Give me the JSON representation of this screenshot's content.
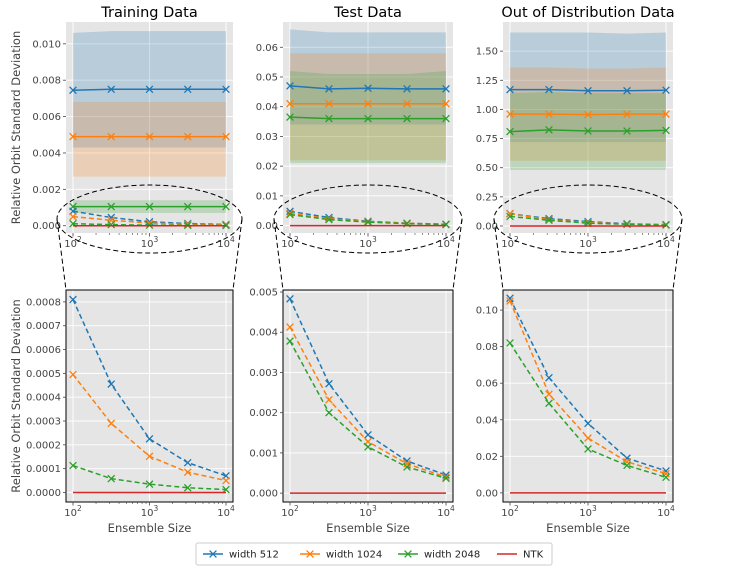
{
  "legend": [
    {
      "name": "width 512",
      "color": "#1f77b4"
    },
    {
      "name": "width 1024",
      "color": "#ff7f0e"
    },
    {
      "name": "width 2048",
      "color": "#2ca02c"
    },
    {
      "name": "NTK",
      "color": "#d62728"
    }
  ],
  "chart_data": [
    {
      "type": "line",
      "panel": "top-left",
      "title": "Training Data",
      "ylabel": "Relative Orbit Standard Deviation",
      "xlabel": "",
      "xscale": "log",
      "x": [
        100,
        316,
        1000,
        3162,
        10000
      ],
      "xticks": [
        "10^2",
        "10^3",
        "10^4"
      ],
      "ylim": [
        -0.0004,
        0.0112
      ],
      "yticks": [
        0.0,
        0.002,
        0.004,
        0.006,
        0.008,
        0.01
      ],
      "ytick_labels": [
        "0.000",
        "0.002",
        "0.004",
        "0.006",
        "0.008",
        "0.010"
      ],
      "series": [
        {
          "name": "width 512",
          "style": "solid",
          "values": [
            0.00745,
            0.0075,
            0.0075,
            0.0075,
            0.0075
          ],
          "band": [
            [
              0.0043,
              0.0106
            ],
            [
              0.0043,
              0.0107
            ],
            [
              0.0043,
              0.0107
            ],
            [
              0.0043,
              0.0107
            ],
            [
              0.0043,
              0.0107
            ]
          ]
        },
        {
          "name": "width 1024",
          "style": "solid",
          "values": [
            0.0049,
            0.0049,
            0.0049,
            0.0049,
            0.0049
          ],
          "band": [
            [
              0.0027,
              0.0068
            ],
            [
              0.0027,
              0.0068
            ],
            [
              0.0027,
              0.0068
            ],
            [
              0.0027,
              0.0068
            ],
            [
              0.0027,
              0.0068
            ]
          ]
        },
        {
          "name": "width 2048",
          "style": "solid",
          "values": [
            0.00105,
            0.00105,
            0.00105,
            0.00105,
            0.00105
          ],
          "band": [
            [
              0.0007,
              0.0014
            ],
            [
              0.0007,
              0.0014
            ],
            [
              0.0007,
              0.0014
            ],
            [
              0.0007,
              0.0014
            ],
            [
              0.0007,
              0.0014
            ]
          ]
        },
        {
          "name": "width 512",
          "style": "dashed",
          "values": [
            0.0008,
            0.00045,
            0.00022,
            0.00012,
            7e-05
          ]
        },
        {
          "name": "width 1024",
          "style": "dashed",
          "values": [
            0.0005,
            0.0003,
            0.00015,
            8e-05,
            5e-05
          ]
        },
        {
          "name": "width 2048",
          "style": "dashed",
          "values": [
            0.00011,
            6e-05,
            3e-05,
            2e-05,
            1e-05
          ]
        },
        {
          "name": "NTK",
          "style": "solid",
          "values": [
            0,
            0,
            0,
            0,
            0
          ]
        }
      ]
    },
    {
      "type": "line",
      "panel": "top-middle",
      "title": "Test Data",
      "ylabel": "",
      "xlabel": "",
      "xscale": "log",
      "x": [
        100,
        316,
        1000,
        3162,
        10000
      ],
      "xticks": [
        "10^2",
        "10^3",
        "10^4"
      ],
      "ylim": [
        -0.0025,
        0.0685
      ],
      "yticks": [
        0.0,
        0.01,
        0.02,
        0.03,
        0.04,
        0.05,
        0.06
      ],
      "ytick_labels": [
        "0.00",
        "0.01",
        "0.02",
        "0.03",
        "0.04",
        "0.05",
        "0.06"
      ],
      "series": [
        {
          "name": "width 512",
          "style": "solid",
          "values": [
            0.047,
            0.046,
            0.0462,
            0.046,
            0.046
          ],
          "band": [
            [
              0.034,
              0.066
            ],
            [
              0.034,
              0.065
            ],
            [
              0.034,
              0.065
            ],
            [
              0.034,
              0.065
            ],
            [
              0.034,
              0.065
            ]
          ]
        },
        {
          "name": "width 1024",
          "style": "solid",
          "values": [
            0.041,
            0.041,
            0.041,
            0.041,
            0.041
          ],
          "band": [
            [
              0.022,
              0.058
            ],
            [
              0.022,
              0.058
            ],
            [
              0.022,
              0.058
            ],
            [
              0.022,
              0.058
            ],
            [
              0.022,
              0.058
            ]
          ]
        },
        {
          "name": "width 2048",
          "style": "solid",
          "values": [
            0.0365,
            0.036,
            0.036,
            0.036,
            0.036
          ],
          "band": [
            [
              0.021,
              0.052
            ],
            [
              0.021,
              0.051
            ],
            [
              0.021,
              0.051
            ],
            [
              0.021,
              0.051
            ],
            [
              0.021,
              0.052
            ]
          ]
        },
        {
          "name": "width 512",
          "style": "dashed",
          "values": [
            0.0048,
            0.0027,
            0.00145,
            0.0008,
            0.00045
          ]
        },
        {
          "name": "width 1024",
          "style": "dashed",
          "values": [
            0.0041,
            0.0023,
            0.0013,
            0.00075,
            0.0004
          ]
        },
        {
          "name": "width 2048",
          "style": "dashed",
          "values": [
            0.0037,
            0.002,
            0.00115,
            0.00065,
            0.00037
          ]
        },
        {
          "name": "NTK",
          "style": "solid",
          "values": [
            0,
            0,
            0,
            0,
            0
          ]
        }
      ]
    },
    {
      "type": "line",
      "panel": "top-right",
      "title": "Out of Distribution Data",
      "ylabel": "",
      "xlabel": "",
      "xscale": "log",
      "x": [
        100,
        316,
        1000,
        3162,
        10000
      ],
      "xticks": [
        "10^2",
        "10^3",
        "10^4"
      ],
      "ylim": [
        -0.06,
        1.75
      ],
      "yticks": [
        0.0,
        0.25,
        0.5,
        0.75,
        1.0,
        1.25,
        1.5
      ],
      "ytick_labels": [
        "0.00",
        "0.25",
        "0.50",
        "0.75",
        "1.00",
        "1.25",
        "1.50"
      ],
      "series": [
        {
          "name": "width 512",
          "style": "solid",
          "values": [
            1.17,
            1.17,
            1.16,
            1.16,
            1.165
          ],
          "band": [
            [
              0.72,
              1.66
            ],
            [
              0.72,
              1.66
            ],
            [
              0.72,
              1.66
            ],
            [
              0.72,
              1.65
            ],
            [
              0.72,
              1.66
            ]
          ]
        },
        {
          "name": "width 1024",
          "style": "solid",
          "values": [
            0.96,
            0.96,
            0.955,
            0.96,
            0.96
          ],
          "band": [
            [
              0.56,
              1.36
            ],
            [
              0.56,
              1.36
            ],
            [
              0.56,
              1.35
            ],
            [
              0.56,
              1.35
            ],
            [
              0.56,
              1.36
            ]
          ]
        },
        {
          "name": "width 2048",
          "style": "solid",
          "values": [
            0.81,
            0.825,
            0.815,
            0.815,
            0.82
          ],
          "band": [
            [
              0.48,
              1.14
            ],
            [
              0.48,
              1.15
            ],
            [
              0.48,
              1.14
            ],
            [
              0.48,
              1.14
            ],
            [
              0.48,
              1.14
            ]
          ]
        },
        {
          "name": "width 512",
          "style": "dashed",
          "values": [
            0.106,
            0.063,
            0.038,
            0.019,
            0.012
          ]
        },
        {
          "name": "width 1024",
          "style": "dashed",
          "values": [
            0.105,
            0.054,
            0.03,
            0.017,
            0.01
          ]
        },
        {
          "name": "width 2048",
          "style": "dashed",
          "values": [
            0.082,
            0.049,
            0.024,
            0.015,
            0.008
          ]
        },
        {
          "name": "NTK",
          "style": "solid",
          "values": [
            0,
            0,
            0,
            0,
            0
          ]
        }
      ]
    },
    {
      "type": "line",
      "panel": "bottom-left",
      "title": "",
      "ylabel": "Relative Orbit Standard Deviation",
      "xlabel": "Ensemble Size",
      "xscale": "log",
      "x": [
        100,
        316,
        1000,
        3162,
        10000
      ],
      "xticks": [
        "10^2",
        "10^3",
        "10^4"
      ],
      "ylim": [
        -4e-05,
        0.00085
      ],
      "yticks": [
        0.0,
        0.0001,
        0.0002,
        0.0003,
        0.0004,
        0.0005,
        0.0006,
        0.0007,
        0.0008
      ],
      "ytick_labels": [
        "0.0000",
        "0.0001",
        "0.0002",
        "0.0003",
        "0.0004",
        "0.0005",
        "0.0006",
        "0.0007",
        "0.0008"
      ],
      "series": [
        {
          "name": "width 512",
          "style": "dashed",
          "values": [
            0.00081,
            0.000455,
            0.000225,
            0.000125,
            7e-05
          ]
        },
        {
          "name": "width 1024",
          "style": "dashed",
          "values": [
            0.000495,
            0.00029,
            0.000152,
            8.5e-05,
            5e-05
          ]
        },
        {
          "name": "width 2048",
          "style": "dashed",
          "values": [
            0.000113,
            5.8e-05,
            3.5e-05,
            2e-05,
            1.2e-05
          ]
        },
        {
          "name": "NTK",
          "style": "solid",
          "values": [
            0,
            0,
            0,
            0,
            0
          ]
        }
      ]
    },
    {
      "type": "line",
      "panel": "bottom-middle",
      "title": "",
      "ylabel": "",
      "xlabel": "Ensemble Size",
      "xscale": "log",
      "x": [
        100,
        316,
        1000,
        3162,
        10000
      ],
      "xticks": [
        "10^2",
        "10^3",
        "10^4"
      ],
      "ylim": [
        -0.00022,
        0.00505
      ],
      "yticks": [
        0.0,
        0.001,
        0.002,
        0.003,
        0.004,
        0.005
      ],
      "ytick_labels": [
        "0.000",
        "0.001",
        "0.002",
        "0.003",
        "0.004",
        "0.005"
      ],
      "series": [
        {
          "name": "width 512",
          "style": "dashed",
          "values": [
            0.00483,
            0.00272,
            0.00145,
            0.0008,
            0.00045
          ]
        },
        {
          "name": "width 1024",
          "style": "dashed",
          "values": [
            0.00413,
            0.00232,
            0.00128,
            0.00073,
            0.0004
          ]
        },
        {
          "name": "width 2048",
          "style": "dashed",
          "values": [
            0.00378,
            0.002,
            0.00115,
            0.00065,
            0.00037
          ]
        },
        {
          "name": "NTK",
          "style": "solid",
          "values": [
            0,
            0,
            0,
            0,
            0
          ]
        }
      ]
    },
    {
      "type": "line",
      "panel": "bottom-right",
      "title": "",
      "ylabel": "",
      "xlabel": "Ensemble Size",
      "xscale": "log",
      "x": [
        100,
        316,
        1000,
        3162,
        10000
      ],
      "xticks": [
        "10^2",
        "10^3",
        "10^4"
      ],
      "ylim": [
        -0.005,
        0.111
      ],
      "yticks": [
        0.0,
        0.02,
        0.04,
        0.06,
        0.08,
        0.1
      ],
      "ytick_labels": [
        "0.00",
        "0.02",
        "0.04",
        "0.06",
        "0.08",
        "0.10"
      ],
      "series": [
        {
          "name": "width 512",
          "style": "dashed",
          "values": [
            0.1065,
            0.063,
            0.038,
            0.019,
            0.012
          ]
        },
        {
          "name": "width 1024",
          "style": "dashed",
          "values": [
            0.105,
            0.054,
            0.03,
            0.017,
            0.0105
          ]
        },
        {
          "name": "width 2048",
          "style": "dashed",
          "values": [
            0.082,
            0.049,
            0.024,
            0.015,
            0.0085
          ]
        },
        {
          "name": "NTK",
          "style": "solid",
          "values": [
            0,
            0,
            0,
            0,
            0
          ]
        }
      ]
    }
  ]
}
